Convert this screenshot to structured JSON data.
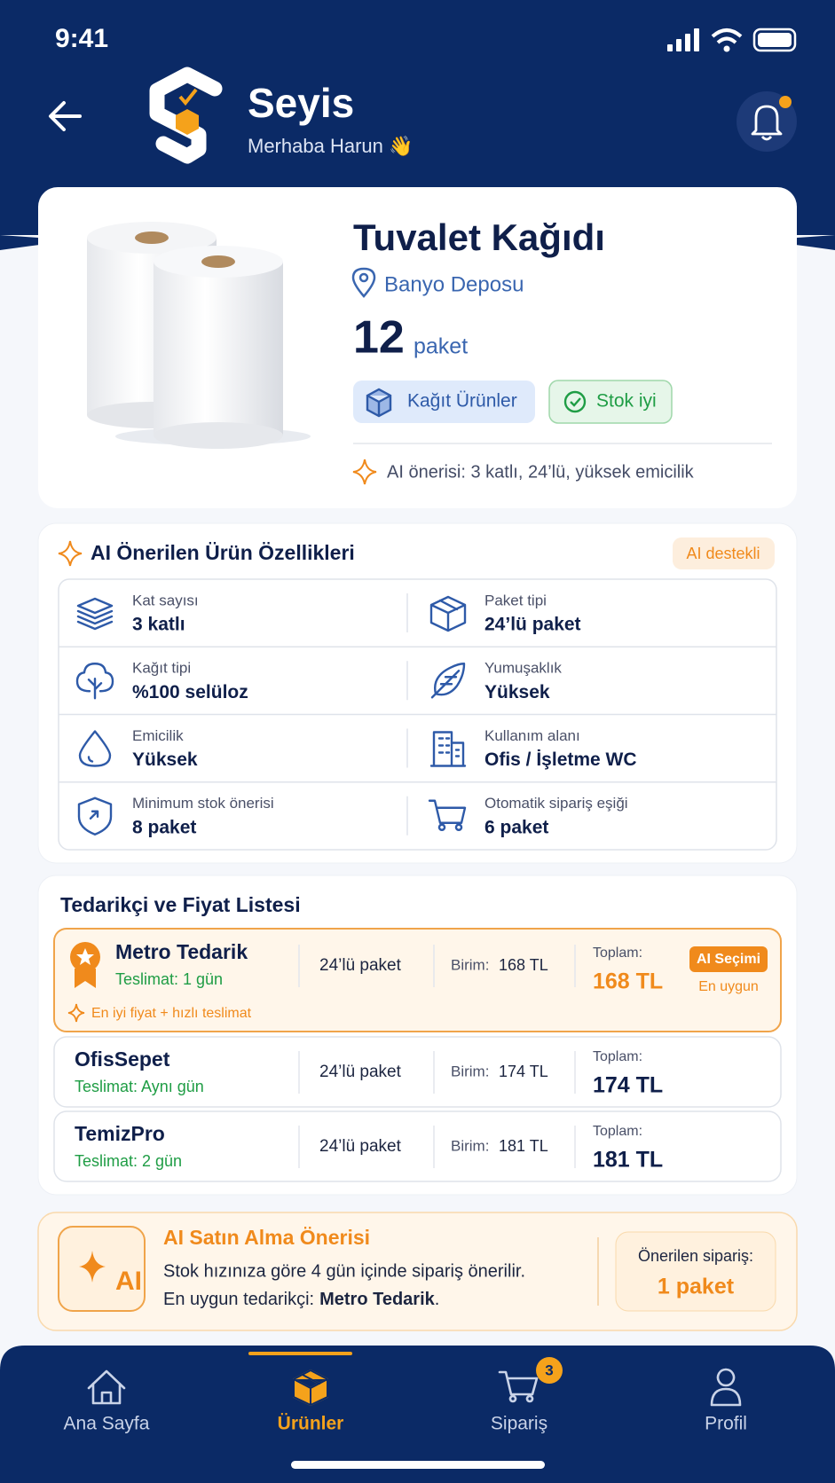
{
  "status_bar": {
    "time": "9:41"
  },
  "header": {
    "title": "Seyis",
    "greeting": "Merhaba Harun 👋"
  },
  "product": {
    "name": "Tuvalet Kağıdı",
    "location": "Banyo Deposu",
    "quantity": "12",
    "unit": "paket",
    "tags": [
      "Kağıt Ürünler",
      "Stok iyi"
    ],
    "ai_note": "AI önerisi: 3 katlı, 24’lü, yüksek emicilik"
  },
  "features": {
    "title": "AI Önerilen Ürün Özellikleri",
    "badge": "AI destekli",
    "items": [
      {
        "label": "Kat sayısı",
        "value": "3 katlı"
      },
      {
        "label": "Paket tipi",
        "value": "24’lü paket"
      },
      {
        "label": "Kağıt tipi",
        "value": "%100 selüloz"
      },
      {
        "label": "Yumuşaklık",
        "value": "Yüksek"
      },
      {
        "label": "Emicilik",
        "value": "Yüksek"
      },
      {
        "label": "Kullanım alanı",
        "value": "Ofis / İşletme WC"
      },
      {
        "label": "Minimum stok önerisi",
        "value": "8 paket"
      },
      {
        "label": "Otomatik sipariş eşiği",
        "value": "6 paket"
      }
    ]
  },
  "suppliers": {
    "title": "Tedarikçi ve Fiyat Listesi",
    "rows": [
      {
        "name": "Metro Tedarik",
        "delivery": "Teslimat: 1 gün",
        "package": "24’lü paket",
        "unit_label": "Birim:",
        "unit_price": "168 TL",
        "total_label": "Toplam:",
        "total": "168 TL",
        "badge": "AI Seçimi",
        "badge_note": "En uygun",
        "note": "En iyi fiyat + hızlı teslimat"
      },
      {
        "name": "OfisSepet",
        "delivery": "Teslimat: Aynı gün",
        "package": "24’lü paket",
        "unit_label": "Birim:",
        "unit_price": "174 TL",
        "total_label": "Toplam:",
        "total": "174 TL"
      },
      {
        "name": "TemizPro",
        "delivery": "Teslimat: 2 gün",
        "package": "24’lü paket",
        "unit_label": "Birim:",
        "unit_price": "181 TL",
        "total_label": "Toplam:",
        "total": "181 TL"
      }
    ]
  },
  "recommendation": {
    "icon_text": "AI",
    "title": "AI Satın Alma Önerisi",
    "line1": "Stok hızınıza göre 4 gün içinde sipariş önerilir.",
    "line2": {
      "prefix": "En uygun tedarikçi:",
      "supplier": "Metro Tedarik",
      "suffix": "."
    },
    "order_label": "Önerilen sipariş:",
    "order_value": "1 paket"
  },
  "nav": {
    "items": [
      "Ana Sayfa",
      "Ürünler",
      "Sipariş",
      "Profil"
    ],
    "active": 1,
    "cart_badge": "3"
  }
}
